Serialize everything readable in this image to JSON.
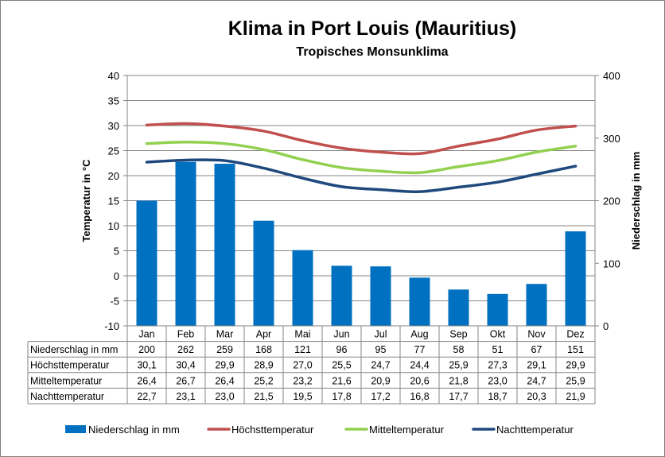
{
  "chart_data": {
    "type": "bar",
    "title": "Klima in Port Louis (Mauritius)",
    "subtitle": "Tropisches Monsunklima",
    "categories": [
      "Jan",
      "Feb",
      "Mar",
      "Apr",
      "Mai",
      "Jun",
      "Jul",
      "Aug",
      "Sep",
      "Okt",
      "Nov",
      "Dez"
    ],
    "ylabel_left": "Temperatur in °C",
    "ylabel_right": "Niederschlag in mm",
    "ylim_left": [
      -10,
      40
    ],
    "yticks_left": [
      -10,
      -5,
      0,
      5,
      10,
      15,
      20,
      25,
      30,
      35,
      40
    ],
    "ylim_right": [
      0,
      400
    ],
    "yticks_right": [
      0,
      100,
      200,
      300,
      400
    ],
    "grid": true,
    "legend_position": "bottom",
    "series": [
      {
        "name": "Niederschlag in mm",
        "kind": "bar",
        "axis": "right",
        "color": "#0070c0",
        "values": [
          200,
          262,
          259,
          168,
          121,
          96,
          95,
          77,
          58,
          51,
          67,
          151
        ]
      },
      {
        "name": "Höchsttemperatur",
        "kind": "line",
        "axis": "left",
        "color": "#c0504d",
        "values": [
          30.1,
          30.4,
          29.9,
          28.9,
          27.0,
          25.5,
          24.7,
          24.4,
          25.9,
          27.3,
          29.1,
          29.9
        ]
      },
      {
        "name": "Mitteltemperatur",
        "kind": "line",
        "axis": "left",
        "color": "#92d050",
        "values": [
          26.4,
          26.7,
          26.4,
          25.2,
          23.2,
          21.6,
          20.9,
          20.6,
          21.8,
          23.0,
          24.7,
          25.9
        ]
      },
      {
        "name": "Nachttemperatur",
        "kind": "line",
        "axis": "left",
        "color": "#1f497d",
        "values": [
          22.7,
          23.1,
          23.0,
          21.5,
          19.5,
          17.8,
          17.2,
          16.8,
          17.7,
          18.7,
          20.3,
          21.9
        ]
      }
    ],
    "table": {
      "rows": [
        {
          "label": "Niederschlag in mm",
          "cells": [
            "200",
            "262",
            "259",
            "168",
            "121",
            "96",
            "95",
            "77",
            "58",
            "51",
            "67",
            "151"
          ]
        },
        {
          "label": "Höchsttemperatur",
          "cells": [
            "30,1",
            "30,4",
            "29,9",
            "28,9",
            "27,0",
            "25,5",
            "24,7",
            "24,4",
            "25,9",
            "27,3",
            "29,1",
            "29,9"
          ]
        },
        {
          "label": "Mitteltemperatur",
          "cells": [
            "26,4",
            "26,7",
            "26,4",
            "25,2",
            "23,2",
            "21,6",
            "20,9",
            "20,6",
            "21,8",
            "23,0",
            "24,7",
            "25,9"
          ]
        },
        {
          "label": "Nachttemperatur",
          "cells": [
            "22,7",
            "23,1",
            "23,0",
            "21,5",
            "19,5",
            "17,8",
            "17,2",
            "16,8",
            "17,7",
            "18,7",
            "20,3",
            "21,9"
          ]
        }
      ]
    }
  }
}
